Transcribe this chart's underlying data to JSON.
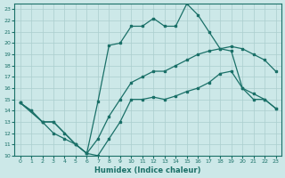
{
  "xlabel": "Humidex (Indice chaleur)",
  "bg_color": "#cce8e8",
  "grid_color": "#aacece",
  "line_color": "#1a7068",
  "xlim": [
    -0.5,
    23.5
  ],
  "ylim": [
    10,
    23.5
  ],
  "yticks": [
    10,
    11,
    12,
    13,
    14,
    15,
    16,
    17,
    18,
    19,
    20,
    21,
    22,
    23
  ],
  "xticks": [
    0,
    1,
    2,
    3,
    4,
    5,
    6,
    7,
    8,
    9,
    10,
    11,
    12,
    13,
    14,
    15,
    16,
    17,
    18,
    19,
    20,
    21,
    22,
    23
  ],
  "line1_x": [
    0,
    1,
    2,
    3,
    4,
    5,
    6,
    7,
    8,
    9,
    10,
    11,
    12,
    13,
    14,
    15,
    16,
    17,
    18,
    19,
    20,
    21,
    22,
    23
  ],
  "line1_y": [
    14.7,
    14.0,
    13.0,
    13.0,
    12.0,
    11.0,
    10.2,
    10.0,
    11.5,
    13.0,
    15.0,
    15.0,
    15.2,
    15.0,
    15.3,
    15.7,
    16.0,
    16.5,
    17.3,
    17.5,
    16.0,
    15.0,
    15.0,
    14.2
  ],
  "line2_x": [
    0,
    2,
    3,
    5,
    6,
    7,
    8,
    9,
    10,
    11,
    12,
    13,
    14,
    15,
    16,
    17,
    18,
    19,
    20,
    21,
    22,
    23
  ],
  "line2_y": [
    14.7,
    13.0,
    13.0,
    11.0,
    10.2,
    11.5,
    13.5,
    15.0,
    16.5,
    17.0,
    17.5,
    17.5,
    18.0,
    18.5,
    19.0,
    19.3,
    19.5,
    19.7,
    19.5,
    19.0,
    18.5,
    17.5
  ],
  "line3_x": [
    0,
    1,
    2,
    3,
    4,
    5,
    6,
    7,
    8,
    9,
    10,
    11,
    12,
    13,
    14,
    15,
    16,
    17,
    18,
    19,
    20,
    21,
    22,
    23
  ],
  "line3_y": [
    14.7,
    14.0,
    13.0,
    12.0,
    11.5,
    11.0,
    10.2,
    14.8,
    19.8,
    20.0,
    21.5,
    21.5,
    22.2,
    21.5,
    21.5,
    23.5,
    22.5,
    21.0,
    19.5,
    19.3,
    16.0,
    15.5,
    15.0,
    14.2
  ]
}
